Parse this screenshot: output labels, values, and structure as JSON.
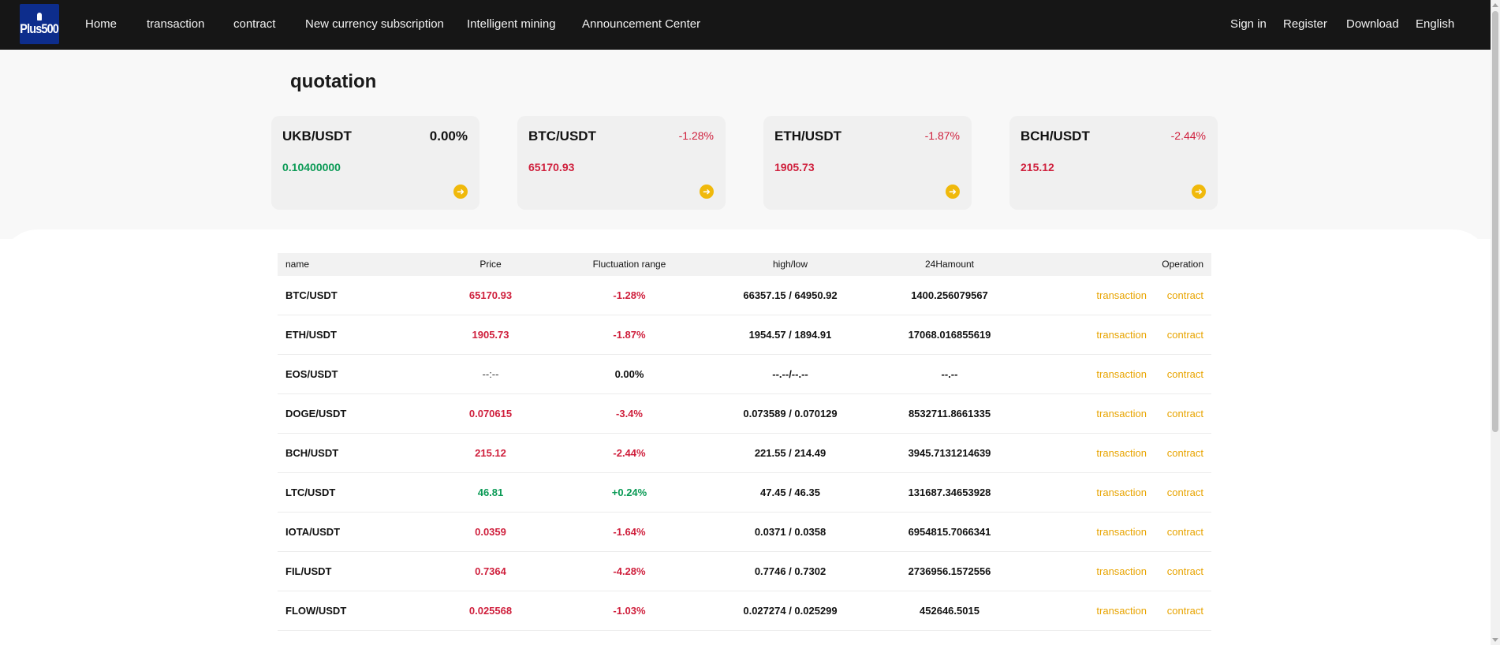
{
  "logo": {
    "text": "Plus500"
  },
  "nav": {
    "left": [
      "Home",
      "transaction",
      "contract",
      "New currency subscription",
      "Intelligent mining",
      "Announcement Center"
    ],
    "right": [
      "Sign in",
      "Register",
      "Download",
      "English"
    ]
  },
  "quotation": {
    "title": "quotation",
    "cards": [
      {
        "pair": "UKB/USDT",
        "change": "0.00%",
        "price": "0.10400000",
        "change_color": "neutral",
        "price_color": "green"
      },
      {
        "pair": "BTC/USDT",
        "change": "-1.28%",
        "price": "65170.93",
        "change_color": "red",
        "price_color": "red"
      },
      {
        "pair": "ETH/USDT",
        "change": "-1.87%",
        "price": "1905.73",
        "change_color": "red",
        "price_color": "red"
      },
      {
        "pair": "BCH/USDT",
        "change": "-2.44%",
        "price": "215.12",
        "change_color": "red",
        "price_color": "red"
      }
    ]
  },
  "market_table": {
    "headers": {
      "name": "name",
      "price": "Price",
      "fluctuation": "Fluctuation range",
      "high_low": "high/low",
      "amount": "24Hamount",
      "operation": "Operation"
    },
    "action_labels": {
      "transaction": "transaction",
      "contract": "contract"
    },
    "rows": [
      {
        "name": "BTC/USDT",
        "price": "65170.93",
        "fluctuation": "-1.28%",
        "high_low": "66357.15 / 64950.92",
        "amount": "1400.256079567",
        "trend": "red"
      },
      {
        "name": "ETH/USDT",
        "price": "1905.73",
        "fluctuation": "-1.87%",
        "high_low": "1954.57 / 1894.91",
        "amount": "17068.016855619",
        "trend": "red"
      },
      {
        "name": "EOS/USDT",
        "price": "--:--",
        "fluctuation": "0.00%",
        "high_low": "--.--/--.--",
        "amount": "--.--",
        "trend": "neutral"
      },
      {
        "name": "DOGE/USDT",
        "price": "0.070615",
        "fluctuation": "-3.4%",
        "high_low": "0.073589 / 0.070129",
        "amount": "8532711.8661335",
        "trend": "red"
      },
      {
        "name": "BCH/USDT",
        "price": "215.12",
        "fluctuation": "-2.44%",
        "high_low": "221.55 / 214.49",
        "amount": "3945.7131214639",
        "trend": "red"
      },
      {
        "name": "LTC/USDT",
        "price": "46.81",
        "fluctuation": "+0.24%",
        "high_low": "47.45 / 46.35",
        "amount": "131687.34653928",
        "trend": "green"
      },
      {
        "name": "IOTA/USDT",
        "price": "0.0359",
        "fluctuation": "-1.64%",
        "high_low": "0.0371 / 0.0358",
        "amount": "6954815.7066341",
        "trend": "red"
      },
      {
        "name": "FIL/USDT",
        "price": "0.7364",
        "fluctuation": "-4.28%",
        "high_low": "0.7746 / 0.7302",
        "amount": "2736956.1572556",
        "trend": "red"
      },
      {
        "name": "FLOW/USDT",
        "price": "0.025568",
        "fluctuation": "-1.03%",
        "high_low": "0.027274 / 0.025299",
        "amount": "452646.5015",
        "trend": "red"
      }
    ]
  },
  "colors": {
    "nav_bg": "#161616",
    "red": "#cf1f3c",
    "green": "#0a9a55",
    "accent": "#e8a400",
    "arrow_button": "#f0b90b"
  },
  "icons": {
    "card_button": "arrow-right-circle-icon"
  }
}
